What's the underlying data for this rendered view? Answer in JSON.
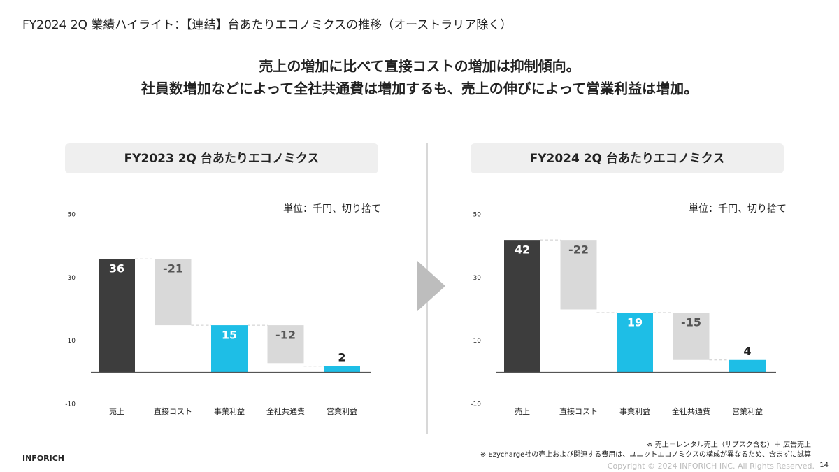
{
  "header": {
    "title": "FY2024 2Q 業績ハイライト：【連結】台あたりエコノミクスの推移（オーストラリア除く）"
  },
  "headline": [
    "売上の増加に比べて直接コストの増加は抑制傾向。",
    "社員数増加などによって全社共通費は増加するも、売上の伸びによって営業利益は増加。"
  ],
  "chart_data": [
    {
      "type": "waterfall",
      "title": "FY2023 2Q 台あたりエコノミクス",
      "unit_note": "単位：千円、切り捨て",
      "categories": [
        "売上",
        "直接コスト",
        "事業利益",
        "全社共通費",
        "営業利益"
      ],
      "values": [
        36,
        -21,
        15,
        -12,
        2
      ],
      "colors": [
        "#3d3d3d",
        "#d9d9d9",
        "#1ebee6",
        "#d9d9d9",
        "#1ebee6"
      ],
      "ylim": [
        -10,
        50
      ],
      "yticks": [
        -10,
        10,
        30,
        50
      ]
    },
    {
      "type": "waterfall",
      "title": "FY2024 2Q 台あたりエコノミクス",
      "unit_note": "単位：千円、切り捨て",
      "categories": [
        "売上",
        "直接コスト",
        "事業利益",
        "全社共通費",
        "営業利益"
      ],
      "values": [
        42,
        -22,
        19,
        -15,
        4
      ],
      "colors": [
        "#3d3d3d",
        "#d9d9d9",
        "#1ebee6",
        "#d9d9d9",
        "#1ebee6"
      ],
      "ylim": [
        -10,
        50
      ],
      "yticks": [
        -10,
        10,
        30,
        50
      ]
    }
  ],
  "footer": {
    "notes": [
      "※ 売上＝レンタル売上（サブスク含む）＋ 広告売上",
      "※ Ezycharge社の売上および関連する費用は、ユニットエコノミクスの構成が異なるため、含まずに試算"
    ],
    "brand": "INFORICH",
    "copyright": "Copyright © 2024 INFORICH INC. All Rights Reserved.",
    "page": "14"
  }
}
